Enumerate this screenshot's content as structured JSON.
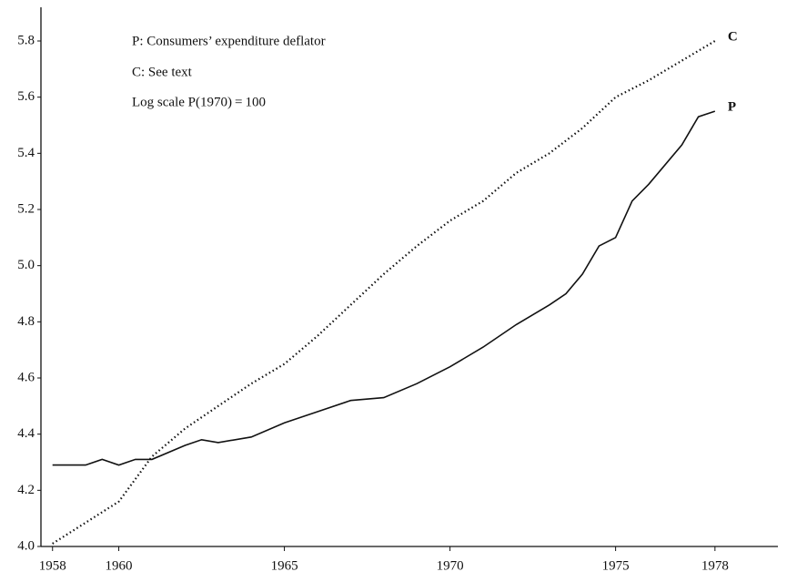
{
  "chart_data": {
    "type": "line",
    "annotations": [
      "P:  Consumers’ expenditure deflator",
      "C:  See text",
      "Log scale P(1970) = 100"
    ],
    "xlim": [
      1957.65,
      1979.9
    ],
    "ylim": [
      4.0,
      5.92
    ],
    "xticks": [
      1958,
      1960,
      1965,
      1970,
      1975,
      1978
    ],
    "yticks": [
      {
        "value": 4.0,
        "label": "4.0"
      },
      4.2,
      4.4,
      4.6,
      4.8,
      {
        "value": 5.0,
        "label": "5.0"
      },
      5.2,
      5.4,
      5.6,
      5.8
    ],
    "series": [
      {
        "name": "C",
        "color": "#111111",
        "dash": "dotted",
        "x": [
          1958,
          1960,
          1961,
          1962,
          1963,
          1964,
          1965,
          1966,
          1967,
          1968,
          1969,
          1970,
          1971,
          1972,
          1973,
          1974,
          1975,
          1976,
          1977,
          1978
        ],
        "values": [
          4.01,
          4.16,
          4.32,
          4.42,
          4.5,
          4.58,
          4.65,
          4.75,
          4.86,
          4.97,
          5.07,
          5.16,
          5.23,
          5.33,
          5.4,
          5.49,
          5.6,
          5.66,
          5.73,
          5.8
        ]
      },
      {
        "name": "P",
        "color": "#111111",
        "dash": "solid",
        "x": [
          1958,
          1959,
          1959.5,
          1960,
          1960.5,
          1961,
          1962,
          1962.5,
          1963,
          1964,
          1965,
          1966,
          1967,
          1968,
          1969,
          1970,
          1971,
          1972,
          1973,
          1973.5,
          1974,
          1974.5,
          1975,
          1975.5,
          1976,
          1977,
          1977.5,
          1978
        ],
        "values": [
          4.29,
          4.29,
          4.31,
          4.29,
          4.31,
          4.31,
          4.36,
          4.38,
          4.37,
          4.39,
          4.44,
          4.48,
          4.52,
          4.53,
          4.58,
          4.64,
          4.71,
          4.79,
          4.86,
          4.9,
          4.97,
          5.07,
          5.1,
          5.23,
          5.29,
          5.43,
          5.53,
          5.55
        ]
      }
    ]
  }
}
